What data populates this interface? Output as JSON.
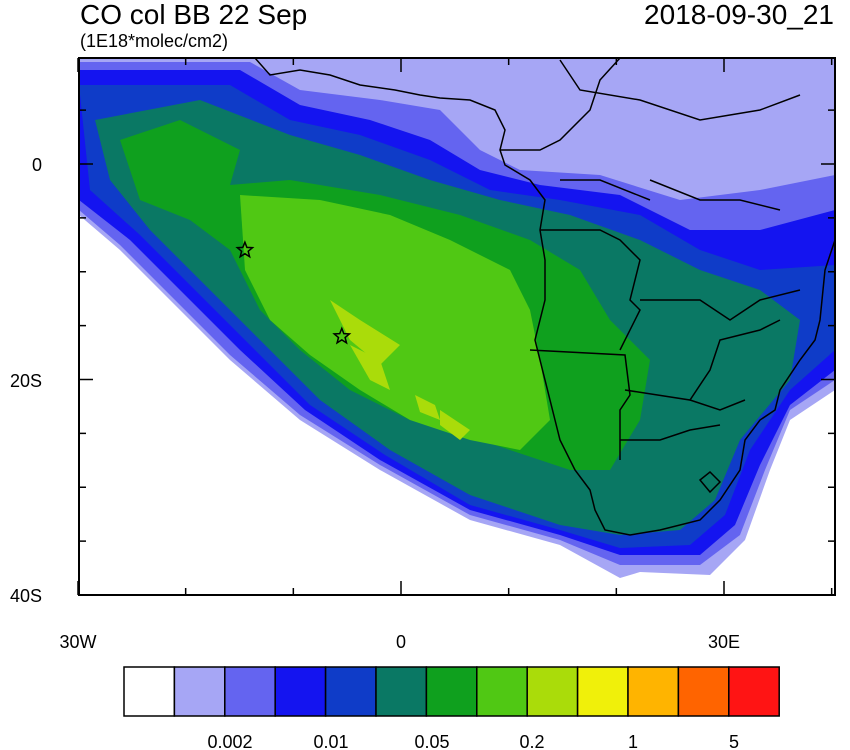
{
  "header": {
    "title": "CO col BB 22 Sep",
    "units": "(1E18*molec/cm2)",
    "timestamp": "2018-09-30_21"
  },
  "map": {
    "lon_labels": [
      "30W",
      "0",
      "30E"
    ],
    "lat_labels": [
      "0",
      "20S",
      "40S"
    ],
    "markers": [
      {
        "name": "star-marker",
        "lon": -14.5,
        "lat": -8
      },
      {
        "name": "star-marker",
        "lon": -5.5,
        "lat": -16
      }
    ]
  },
  "colorbar": {
    "colors": [
      "#ffffff",
      "#a6a6f5",
      "#6464f0",
      "#1414f0",
      "#0f3cc8",
      "#0a7864",
      "#0fa01e",
      "#50c814",
      "#aadc0a",
      "#f0f00a",
      "#ffb400",
      "#ff6400",
      "#ff1414"
    ],
    "labels": [
      "0.002",
      "0.01",
      "0.05",
      "0.2",
      "1",
      "5"
    ]
  }
}
